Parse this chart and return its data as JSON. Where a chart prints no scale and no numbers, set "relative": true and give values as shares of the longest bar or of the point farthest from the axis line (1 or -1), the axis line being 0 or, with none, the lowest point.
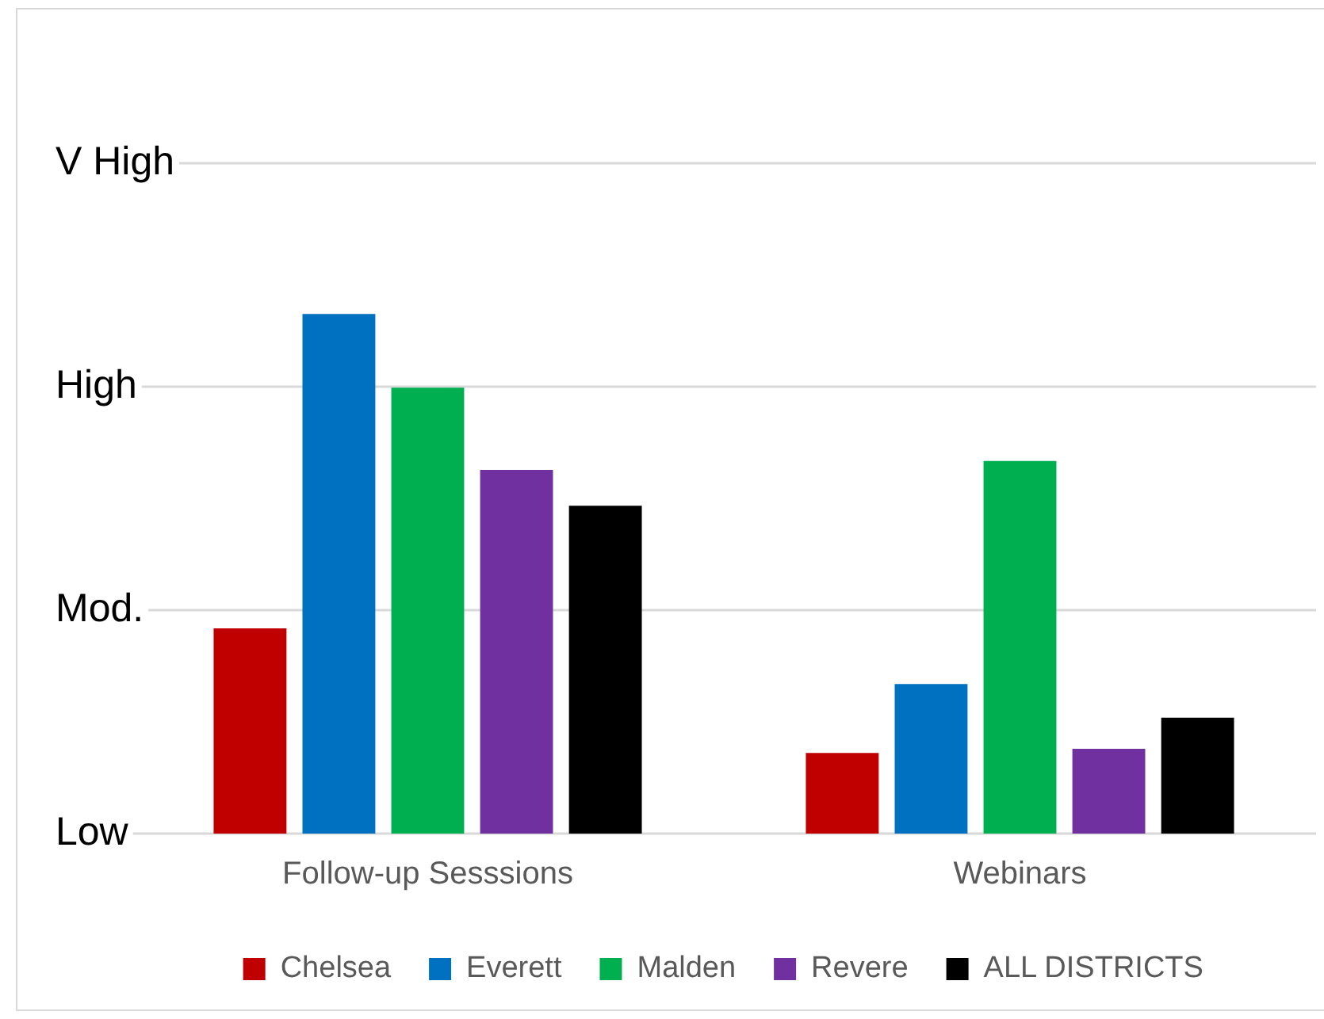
{
  "chart_data": {
    "type": "bar",
    "relative": true,
    "categories": [
      "Follow-up Sesssions",
      "Webinars"
    ],
    "series": [
      {
        "name": "Chelsea",
        "color": "#c00000",
        "values": [
          0.395,
          0.155
        ]
      },
      {
        "name": "Everett",
        "color": "#0070c0",
        "values": [
          1,
          0.288
        ]
      },
      {
        "name": "Malden",
        "color": "#00b050",
        "values": [
          0.858,
          0.717
        ]
      },
      {
        "name": "Revere",
        "color": "#7030a0",
        "values": [
          0.7,
          0.163
        ]
      },
      {
        "name": "ALL DISTRICTS",
        "color": "#000000",
        "values": [
          0.631,
          0.223
        ]
      }
    ],
    "ref_lines": [
      {
        "axis": "y",
        "value": 0,
        "label": "Low",
        "color": "#d9d9d9"
      },
      {
        "axis": "y",
        "value": 0.43,
        "label": "Mod.",
        "color": "#d9d9d9"
      },
      {
        "axis": "y",
        "value": 0.86,
        "label": "High",
        "color": "#d9d9d9"
      },
      {
        "axis": "y",
        "value": 1.29,
        "label": "V High",
        "color": "#d9d9d9"
      }
    ],
    "legend": "bottom"
  }
}
